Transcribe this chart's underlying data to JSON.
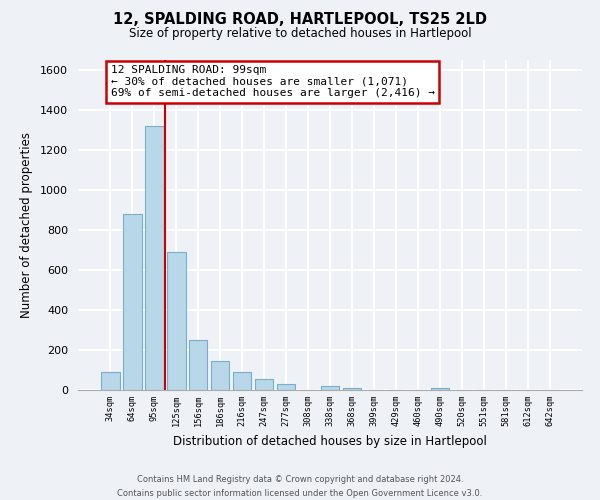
{
  "title": "12, SPALDING ROAD, HARTLEPOOL, TS25 2LD",
  "subtitle": "Size of property relative to detached houses in Hartlepool",
  "xlabel": "Distribution of detached houses by size in Hartlepool",
  "ylabel": "Number of detached properties",
  "bar_labels": [
    "34sqm",
    "64sqm",
    "95sqm",
    "125sqm",
    "156sqm",
    "186sqm",
    "216sqm",
    "247sqm",
    "277sqm",
    "308sqm",
    "338sqm",
    "368sqm",
    "399sqm",
    "429sqm",
    "460sqm",
    "490sqm",
    "520sqm",
    "551sqm",
    "581sqm",
    "612sqm",
    "642sqm"
  ],
  "bar_values": [
    88,
    880,
    1320,
    690,
    252,
    143,
    90,
    55,
    30,
    0,
    22,
    12,
    0,
    0,
    0,
    12,
    0,
    0,
    0,
    0,
    0
  ],
  "bar_color": "#b8d8ea",
  "bar_edge_color": "#7aaec8",
  "highlight_line_color": "#cc0000",
  "annotation_title": "12 SPALDING ROAD: 99sqm",
  "annotation_line1": "← 30% of detached houses are smaller (1,071)",
  "annotation_line2": "69% of semi-detached houses are larger (2,416) →",
  "annotation_box_color": "#ffffff",
  "annotation_box_edge_color": "#cc0000",
  "ylim": [
    0,
    1650
  ],
  "yticks": [
    0,
    200,
    400,
    600,
    800,
    1000,
    1200,
    1400,
    1600
  ],
  "footer_line1": "Contains HM Land Registry data © Crown copyright and database right 2024.",
  "footer_line2": "Contains public sector information licensed under the Open Government Licence v3.0.",
  "bg_color": "#eef2f7",
  "grid_color": "#ffffff"
}
